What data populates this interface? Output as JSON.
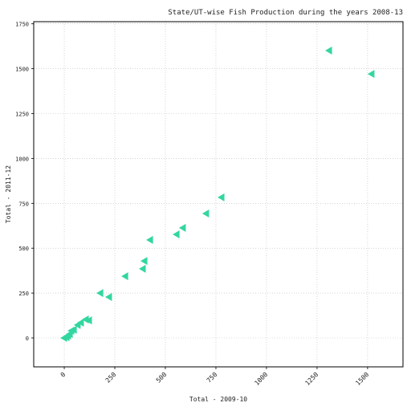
{
  "chart_data": {
    "type": "scatter",
    "title": "State/UT-wise Fish Production during the years 2008-13",
    "x_label": "Total - 2009-10",
    "y_label": "Total - 2011-12",
    "color": "#33d6a0",
    "marker": "triangle-left",
    "grid": true,
    "x": [
      1310,
      1520,
      778,
      702,
      587,
      556,
      425,
      397,
      389,
      302,
      222,
      179,
      123,
      107,
      83,
      67,
      48,
      36,
      28,
      20,
      12,
      0
    ],
    "values": [
      1601,
      1471,
      783,
      693,
      613,
      577,
      546,
      429,
      385,
      344,
      228,
      250,
      98,
      103,
      85,
      72,
      45,
      40,
      22,
      13,
      4,
      0
    ],
    "xlim": [
      -151,
      1675
    ],
    "ylim": [
      -161,
      1762
    ],
    "xticks": [
      0,
      250,
      500,
      750,
      1000,
      1250,
      1500
    ],
    "yticks": [
      0,
      250,
      500,
      750,
      1000,
      1250,
      1500,
      1750
    ]
  }
}
